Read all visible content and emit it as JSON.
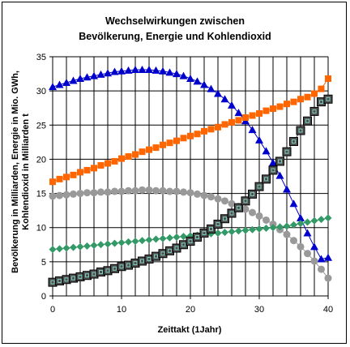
{
  "chart_data": {
    "type": "line",
    "title_lines": [
      "Wechselwirkungen zwischen",
      "Bevölkerung, Energie und Kohlendioxid"
    ],
    "xlabel": "Zeittakt (1Jahr)",
    "ylabel_lines": [
      "Bevölkerung in Milliarden, Energie in Mio. GWh,",
      "Kohlendioxid in Milliarden t"
    ],
    "xlim": [
      0,
      40
    ],
    "ylim": [
      0,
      35
    ],
    "x_ticks": [
      0,
      10,
      20,
      30,
      40
    ],
    "y_ticks": [
      0,
      5,
      10,
      15,
      20,
      25,
      30,
      35
    ],
    "grid": true,
    "legend": "none",
    "x": [
      0,
      1,
      2,
      3,
      4,
      5,
      6,
      7,
      8,
      9,
      10,
      11,
      12,
      13,
      14,
      15,
      16,
      17,
      18,
      19,
      20,
      21,
      22,
      23,
      24,
      25,
      26,
      27,
      28,
      29,
      30,
      31,
      32,
      33,
      34,
      35,
      36,
      37,
      38,
      39,
      40
    ],
    "series": [
      {
        "marker": "triangle",
        "color": "#0000cc",
        "values": [
          30.6,
          30.9,
          31.2,
          31.5,
          31.8,
          32.0,
          32.2,
          32.4,
          32.6,
          32.8,
          32.9,
          33.0,
          33.1,
          33.1,
          33.1,
          33.0,
          32.9,
          32.7,
          32.5,
          32.2,
          31.8,
          31.4,
          30.9,
          30.3,
          29.6,
          28.8,
          27.9,
          26.8,
          25.6,
          24.3,
          22.8,
          21.2,
          19.5,
          17.6,
          15.6,
          13.5,
          11.4,
          9.2,
          7.2,
          5.4,
          5.6
        ]
      },
      {
        "marker": "square",
        "color": "#ff6600",
        "values": [
          16.7,
          17.1,
          17.4,
          17.7,
          18.1,
          18.4,
          18.7,
          19.1,
          19.4,
          19.7,
          20.1,
          20.4,
          20.7,
          21.1,
          21.4,
          21.7,
          22.1,
          22.4,
          22.7,
          23.1,
          23.4,
          23.7,
          24.1,
          24.4,
          24.7,
          25.1,
          25.4,
          25.7,
          26.1,
          26.4,
          26.7,
          27.1,
          27.4,
          27.7,
          28.1,
          28.4,
          28.8,
          29.1,
          29.6,
          30.3,
          31.8
        ]
      },
      {
        "marker": "circle",
        "color": "#999999",
        "values": [
          14.6,
          14.7,
          14.8,
          14.9,
          15.0,
          15.1,
          15.1,
          15.2,
          15.2,
          15.3,
          15.3,
          15.4,
          15.4,
          15.5,
          15.5,
          15.4,
          15.4,
          15.3,
          15.3,
          15.2,
          15.1,
          14.9,
          14.7,
          14.5,
          14.2,
          13.9,
          13.5,
          13.1,
          12.7,
          12.2,
          11.7,
          11.1,
          10.5,
          9.7,
          9.0,
          8.1,
          7.2,
          6.2,
          5.1,
          3.9,
          2.6
        ]
      },
      {
        "marker": "diamond",
        "color": "#339966",
        "values": [
          6.8,
          6.9,
          7.0,
          7.1,
          7.2,
          7.3,
          7.4,
          7.5,
          7.6,
          7.7,
          7.8,
          7.9,
          8.0,
          8.1,
          8.2,
          8.3,
          8.4,
          8.5,
          8.6,
          8.7,
          8.8,
          8.9,
          9.0,
          9.1,
          9.2,
          9.3,
          9.4,
          9.5,
          9.6,
          9.7,
          9.8,
          9.9,
          10.0,
          10.1,
          10.2,
          10.4,
          10.6,
          10.8,
          11.0,
          11.2,
          11.4
        ]
      },
      {
        "marker": "boxed-square",
        "color": "#4d4d4d",
        "values": [
          2.0,
          2.2,
          2.4,
          2.6,
          2.8,
          3.0,
          3.2,
          3.5,
          3.7,
          4.0,
          4.3,
          4.5,
          4.8,
          5.1,
          5.4,
          5.8,
          6.2,
          6.6,
          7.0,
          7.5,
          8.0,
          8.6,
          9.2,
          9.8,
          10.5,
          11.3,
          12.1,
          12.9,
          13.9,
          14.9,
          16.0,
          17.1,
          18.4,
          19.7,
          21.1,
          22.6,
          24.2,
          25.6,
          27.0,
          28.4,
          28.8
        ]
      }
    ]
  }
}
